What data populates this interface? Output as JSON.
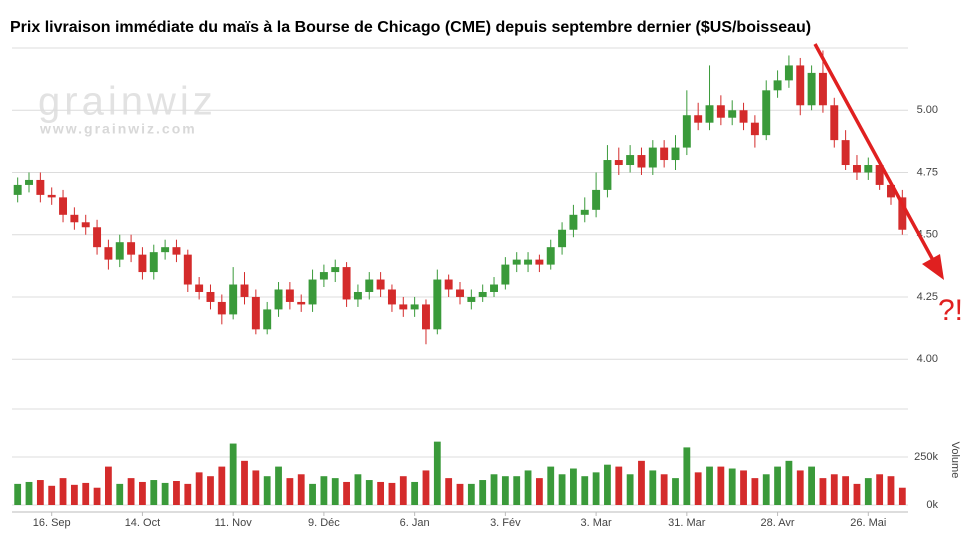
{
  "chart_data": {
    "type": "candlestick",
    "title": "Prix livraison immédiate du maïs à la Bourse de Chicago (CME) depuis septembre dernier ($US/boisseau)",
    "watermark": "grainwiz",
    "watermark_url": "www.grainwiz.com",
    "annotation": "?!",
    "annotation_color": "#e02020",
    "up_color": "#3a9a3a",
    "down_color": "#d42b2b",
    "grid": true,
    "categories": [
      null,
      null,
      null,
      "16. Sep",
      null,
      null,
      null,
      null,
      null,
      null,
      null,
      "14. Oct",
      null,
      null,
      null,
      null,
      null,
      null,
      null,
      "11. Nov",
      null,
      null,
      null,
      null,
      null,
      null,
      null,
      "9. Déc",
      null,
      null,
      null,
      null,
      null,
      null,
      null,
      "6. Jan",
      null,
      null,
      null,
      null,
      null,
      null,
      null,
      "3. Fév",
      null,
      null,
      null,
      null,
      null,
      null,
      null,
      "3. Mar",
      null,
      null,
      null,
      null,
      null,
      null,
      null,
      "31. Mar",
      null,
      null,
      null,
      null,
      null,
      null,
      null,
      "28. Avr",
      null,
      null,
      null,
      null,
      null,
      null,
      null,
      "26. Mai",
      null,
      null,
      null
    ],
    "open": [
      4.66,
      4.7,
      4.72,
      4.66,
      4.65,
      4.58,
      4.55,
      4.53,
      4.45,
      4.4,
      4.47,
      4.42,
      4.35,
      4.43,
      4.45,
      4.42,
      4.3,
      4.27,
      4.23,
      4.18,
      4.3,
      4.25,
      4.12,
      4.2,
      4.28,
      4.23,
      4.22,
      4.32,
      4.35,
      4.37,
      4.24,
      4.27,
      4.32,
      4.28,
      4.22,
      4.2,
      4.22,
      4.12,
      4.32,
      4.28,
      4.23,
      4.25,
      4.27,
      4.3,
      4.38,
      4.38,
      4.4,
      4.38,
      4.45,
      4.52,
      4.58,
      4.6,
      4.68,
      4.8,
      4.78,
      4.82,
      4.77,
      4.85,
      4.8,
      4.85,
      4.98,
      4.95,
      5.02,
      4.97,
      5.0,
      4.95,
      4.9,
      5.08,
      5.12,
      5.18,
      5.02,
      5.15,
      5.02,
      4.88,
      4.78,
      4.75,
      4.78,
      4.7,
      4.65
    ],
    "high": [
      4.73,
      4.75,
      4.75,
      4.69,
      4.68,
      4.61,
      4.58,
      4.56,
      4.48,
      4.5,
      4.5,
      4.45,
      4.46,
      4.48,
      4.48,
      4.44,
      4.33,
      4.3,
      4.26,
      4.37,
      4.35,
      4.28,
      4.23,
      4.31,
      4.31,
      4.26,
      4.36,
      4.38,
      4.4,
      4.39,
      4.3,
      4.35,
      4.35,
      4.3,
      4.25,
      4.25,
      4.24,
      4.36,
      4.34,
      4.31,
      4.28,
      4.3,
      4.33,
      4.41,
      4.43,
      4.43,
      4.42,
      4.48,
      4.55,
      4.62,
      4.65,
      4.75,
      4.86,
      4.85,
      4.86,
      4.85,
      4.88,
      4.88,
      4.9,
      5.08,
      5.03,
      5.18,
      5.06,
      5.04,
      5.03,
      4.98,
      5.12,
      5.16,
      5.22,
      5.21,
      5.18,
      5.24,
      5.05,
      4.92,
      4.82,
      4.81,
      4.8,
      4.72,
      4.68
    ],
    "low": [
      4.63,
      4.67,
      4.63,
      4.62,
      4.55,
      4.52,
      4.5,
      4.42,
      4.36,
      4.37,
      4.39,
      4.32,
      4.32,
      4.4,
      4.39,
      4.27,
      4.24,
      4.2,
      4.14,
      4.16,
      4.22,
      4.1,
      4.1,
      4.17,
      4.2,
      4.19,
      4.19,
      4.29,
      4.31,
      4.21,
      4.21,
      4.24,
      4.25,
      4.19,
      4.17,
      4.17,
      4.06,
      4.1,
      4.25,
      4.22,
      4.2,
      4.23,
      4.25,
      4.28,
      4.35,
      4.35,
      4.35,
      4.36,
      4.42,
      4.49,
      4.55,
      4.57,
      4.65,
      4.74,
      4.75,
      4.74,
      4.74,
      4.77,
      4.76,
      4.82,
      4.92,
      4.92,
      4.94,
      4.94,
      4.92,
      4.85,
      4.88,
      5.05,
      5.09,
      4.98,
      5.0,
      4.99,
      4.85,
      4.76,
      4.72,
      4.72,
      4.68,
      4.62,
      4.5
    ],
    "close": [
      4.7,
      4.72,
      4.66,
      4.65,
      4.58,
      4.55,
      4.53,
      4.45,
      4.4,
      4.47,
      4.42,
      4.35,
      4.43,
      4.45,
      4.42,
      4.3,
      4.27,
      4.23,
      4.18,
      4.3,
      4.25,
      4.12,
      4.2,
      4.28,
      4.23,
      4.22,
      4.32,
      4.35,
      4.37,
      4.24,
      4.27,
      4.32,
      4.28,
      4.22,
      4.2,
      4.22,
      4.12,
      4.32,
      4.28,
      4.25,
      4.25,
      4.27,
      4.3,
      4.38,
      4.4,
      4.4,
      4.38,
      4.45,
      4.52,
      4.58,
      4.6,
      4.68,
      4.8,
      4.78,
      4.82,
      4.77,
      4.85,
      4.8,
      4.85,
      4.98,
      4.95,
      5.02,
      4.97,
      5.0,
      4.95,
      4.9,
      5.08,
      5.12,
      5.18,
      5.02,
      5.15,
      5.02,
      4.88,
      4.78,
      4.75,
      4.78,
      4.7,
      4.65,
      4.52
    ],
    "volume": [
      110000,
      120000,
      130000,
      100000,
      140000,
      105000,
      115000,
      90000,
      200000,
      110000,
      140000,
      120000,
      130000,
      115000,
      125000,
      110000,
      170000,
      150000,
      200000,
      320000,
      230000,
      180000,
      150000,
      200000,
      140000,
      160000,
      110000,
      150000,
      140000,
      120000,
      160000,
      130000,
      120000,
      115000,
      150000,
      120000,
      180000,
      330000,
      140000,
      110000,
      110000,
      130000,
      160000,
      150000,
      150000,
      180000,
      140000,
      200000,
      160000,
      190000,
      150000,
      170000,
      210000,
      200000,
      160000,
      230000,
      180000,
      160000,
      140000,
      300000,
      170000,
      200000,
      200000,
      190000,
      180000,
      140000,
      160000,
      200000,
      230000,
      180000,
      200000,
      140000,
      160000,
      150000,
      110000,
      140000,
      160000,
      150000,
      90000
    ],
    "ylim": [
      3.8,
      5.25
    ],
    "yticks": [
      {
        "value": 4,
        "label": "4.00"
      },
      {
        "value": 4.25,
        "label": "4.25"
      },
      {
        "value": 4.5,
        "label": "4.50"
      },
      {
        "value": 4.75,
        "label": "4.75"
      },
      {
        "value": 5,
        "label": "5.00"
      }
    ],
    "y2label": "Volume",
    "y2lim": [
      0,
      500000
    ],
    "y2ticks": [
      {
        "value": 0,
        "label": "0k"
      },
      {
        "value": 250000,
        "label": "250k"
      }
    ]
  }
}
